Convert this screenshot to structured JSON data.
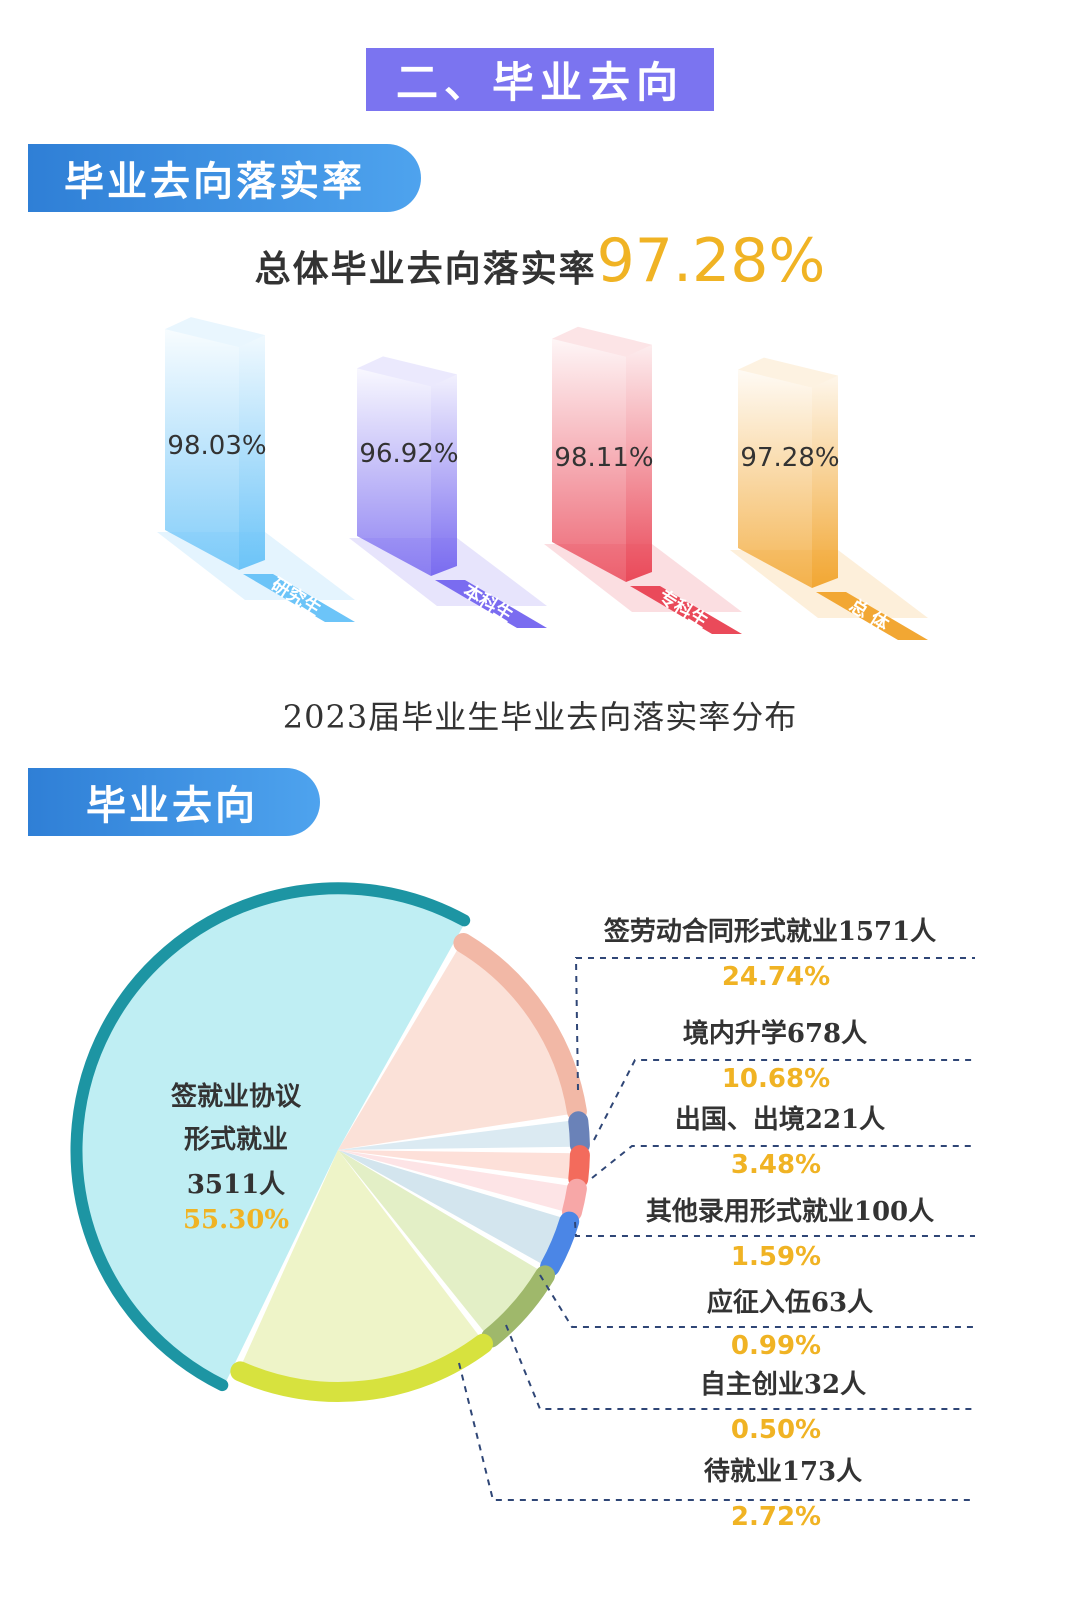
{
  "header": {
    "title": "二、毕业去向"
  },
  "section1": {
    "tab_label": "毕业去向落实率",
    "overall_label": "总体毕业去向落实率",
    "overall_value": "97.28%",
    "caption": "2023届毕业生毕业去向落实率分布"
  },
  "section2": {
    "tab_label": "毕业去向"
  },
  "colors": {
    "title_bg": "#7b74f0",
    "tab_bg": "#3a8ee0",
    "highlight": "#f0b324",
    "bar_grad": "#6cc4f8",
    "bar_ug": "#7a6cf0",
    "bar_jc": "#ea4a5a",
    "bar_total": "#f2a733",
    "pie_main": "#bfeef3",
    "pie_ring": "#1d95a3"
  },
  "chart_data": [
    {
      "type": "bar",
      "categories": [
        "研究生",
        "本科生",
        "专科生",
        "总 体"
      ],
      "values": [
        98.03,
        96.92,
        98.11,
        97.28
      ],
      "value_labels": [
        "98.03%",
        "96.92%",
        "98.11%",
        "97.28%"
      ],
      "title": "2023届毕业生毕业去向落实率分布",
      "unit": "%"
    },
    {
      "type": "pie",
      "slices": [
        {
          "label": "签就业协议形式就业",
          "label_lines": [
            "签就业协议",
            "形式就业"
          ],
          "count": 3511,
          "count_label": "3511人",
          "percent": 55.3,
          "percent_label": "55.30%"
        },
        {
          "label": "签劳动合同形式就业1571人",
          "count": 1571,
          "percent": 24.74,
          "percent_label": "24.74%"
        },
        {
          "label": "境内升学678人",
          "count": 678,
          "percent": 10.68,
          "percent_label": "10.68%"
        },
        {
          "label": "出国、出境221人",
          "count": 221,
          "percent": 3.48,
          "percent_label": "3.48%"
        },
        {
          "label": "其他录用形式就业100人",
          "count": 100,
          "percent": 1.59,
          "percent_label": "1.59%"
        },
        {
          "label": "应征入伍63人",
          "count": 63,
          "percent": 0.99,
          "percent_label": "0.99%"
        },
        {
          "label": "自主创业32人",
          "count": 32,
          "percent": 0.5,
          "percent_label": "0.50%"
        },
        {
          "label": "待就业173人",
          "count": 173,
          "percent": 2.72,
          "percent_label": "2.72%"
        }
      ]
    }
  ]
}
